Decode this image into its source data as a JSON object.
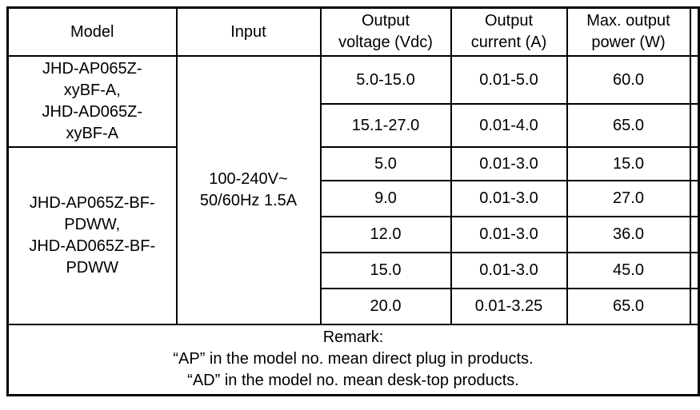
{
  "table": {
    "header": {
      "model": "Model",
      "input": "Input",
      "output_voltage": [
        "Output",
        "voltage (Vdc)"
      ],
      "output_current": [
        "Output",
        "current (A)"
      ],
      "max_output_power": [
        "Max. output",
        "power (W)"
      ]
    },
    "model_groups": {
      "group1": [
        "JHD-AP065Z-",
        "xyBF-A,",
        "JHD-AD065Z-",
        "xyBF-A"
      ],
      "group2": [
        "JHD-AP065Z-BF-",
        "PDWW,",
        "JHD-AD065Z-BF-",
        "PDWW"
      ]
    },
    "input_spec": [
      "100-240V~",
      "50/60Hz 1.5A"
    ],
    "rows": [
      {
        "voltage": "5.0-15.0",
        "current": "0.01-5.0",
        "power": "60.0"
      },
      {
        "voltage": "15.1-27.0",
        "current": "0.01-4.0",
        "power": "65.0"
      },
      {
        "voltage": "5.0",
        "current": "0.01-3.0",
        "power": "15.0"
      },
      {
        "voltage": "9.0",
        "current": "0.01-3.0",
        "power": "27.0"
      },
      {
        "voltage": "12.0",
        "current": "0.01-3.0",
        "power": "36.0"
      },
      {
        "voltage": "15.0",
        "current": "0.01-3.0",
        "power": "45.0"
      },
      {
        "voltage": "20.0",
        "current": "0.01-3.25",
        "power": "65.0"
      }
    ],
    "remark": [
      "Remark:",
      "“AP” in the model no. mean direct plug in products.",
      "“AD” in the model no. mean desk-top products."
    ]
  },
  "chart_data": {
    "type": "table",
    "title": "",
    "columns": [
      "Model",
      "Input",
      "Output voltage (Vdc)",
      "Output current (A)",
      "Max. output power (W)"
    ],
    "rows": [
      [
        "JHD-AP065Z-xyBF-A, JHD-AD065Z-xyBF-A",
        "100-240V~ 50/60Hz 1.5A",
        "5.0-15.0",
        "0.01-5.0",
        "60.0"
      ],
      [
        "JHD-AP065Z-xyBF-A, JHD-AD065Z-xyBF-A",
        "100-240V~ 50/60Hz 1.5A",
        "15.1-27.0",
        "0.01-4.0",
        "65.0"
      ],
      [
        "JHD-AP065Z-BF-PDWW, JHD-AD065Z-BF-PDWW",
        "100-240V~ 50/60Hz 1.5A",
        "5.0",
        "0.01-3.0",
        "15.0"
      ],
      [
        "JHD-AP065Z-BF-PDWW, JHD-AD065Z-BF-PDWW",
        "100-240V~ 50/60Hz 1.5A",
        "9.0",
        "0.01-3.0",
        "27.0"
      ],
      [
        "JHD-AP065Z-BF-PDWW, JHD-AD065Z-BF-PDWW",
        "100-240V~ 50/60Hz 1.5A",
        "12.0",
        "0.01-3.0",
        "36.0"
      ],
      [
        "JHD-AP065Z-BF-PDWW, JHD-AD065Z-BF-PDWW",
        "100-240V~ 50/60Hz 1.5A",
        "15.0",
        "0.01-3.0",
        "45.0"
      ],
      [
        "JHD-AP065Z-BF-PDWW, JHD-AD065Z-BF-PDWW",
        "100-240V~ 50/60Hz 1.5A",
        "20.0",
        "0.01-3.25",
        "65.0"
      ]
    ]
  }
}
